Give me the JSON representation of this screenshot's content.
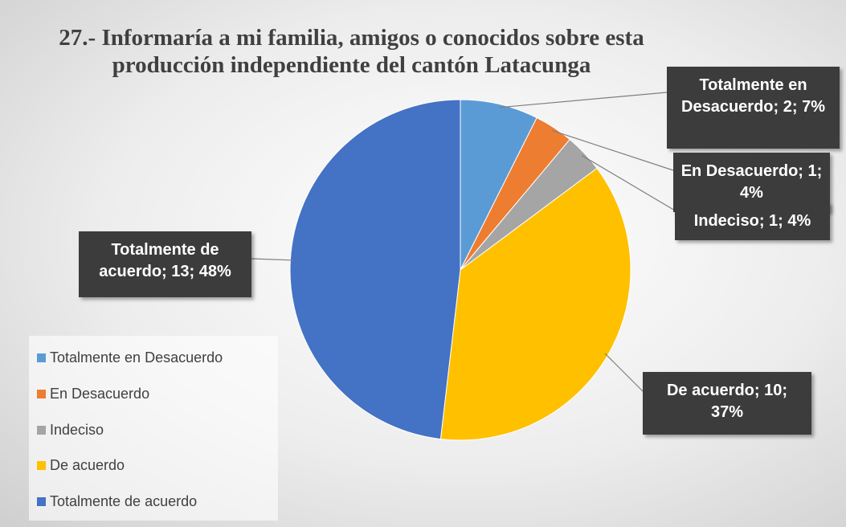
{
  "chart_data": {
    "type": "pie",
    "title": "27.- Informaría a mi familia, amigos o conocidos sobre esta producción independiente del cantón Latacunga",
    "categories": [
      "Totalmente en Desacuerdo",
      "En Desacuerdo",
      "Indeciso",
      "De acuerdo",
      "Totalmente de acuerdo"
    ],
    "values": [
      2,
      1,
      1,
      10,
      13
    ],
    "value_labels": [
      "Totalmente en Desacuerdo; 2; 7%",
      "En Desacuerdo; 1; 4%",
      "Indeciso; 1; 4%",
      "De acuerdo; 10; 37%",
      "Totalmente de acuerdo; 13; 48%"
    ],
    "colors": [
      "#5b9bd5",
      "#ed7d31",
      "#a5a5a5",
      "#ffc000",
      "#4472c4"
    ],
    "legend": "left"
  }
}
